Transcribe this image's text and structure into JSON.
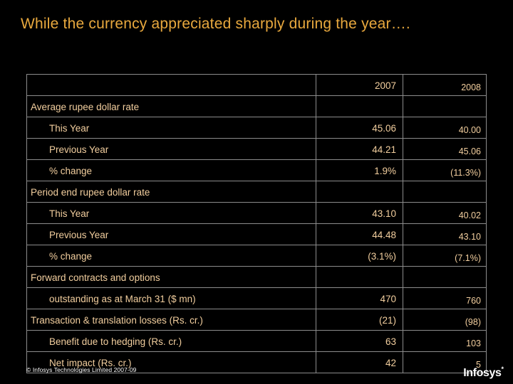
{
  "slide": {
    "title": "While the currency appreciated sharply during the year….",
    "background_color": "#000000",
    "title_color": "#E9A93E"
  },
  "table": {
    "text_color": "#F2CE9E",
    "border_color": "#8C8C8C",
    "columns": [
      "",
      "2007",
      "2008"
    ],
    "rows": [
      {
        "label": "Average rupee dollar rate",
        "indent": false,
        "v2007": "",
        "v2008": ""
      },
      {
        "label": "This Year",
        "indent": true,
        "v2007": "45.06",
        "v2008": "40.00"
      },
      {
        "label": "Previous Year",
        "indent": true,
        "v2007": "44.21",
        "v2008": "45.06"
      },
      {
        "label": "% change",
        "indent": true,
        "v2007": "1.9%",
        "v2008": "(11.3%)"
      },
      {
        "label": "Period end rupee dollar rate",
        "indent": false,
        "v2007": "",
        "v2008": ""
      },
      {
        "label": "This Year",
        "indent": true,
        "v2007": "43.10",
        "v2008": "40.02"
      },
      {
        "label": "Previous Year",
        "indent": true,
        "v2007": "44.48",
        "v2008": "43.10"
      },
      {
        "label": "% change",
        "indent": true,
        "v2007": "(3.1%)",
        "v2008": "(7.1%)"
      },
      {
        "label": "Forward contracts and options",
        "indent": false,
        "v2007": "",
        "v2008": ""
      },
      {
        "label": "outstanding as at March 31 ($ mn)",
        "indent": true,
        "v2007": "470",
        "v2008": "760"
      },
      {
        "label": "Transaction & translation losses (Rs. cr.)",
        "indent": false,
        "v2007": "(21)",
        "v2008": "(98)"
      },
      {
        "label": "Benefit due to hedging (Rs. cr.)",
        "indent": true,
        "v2007": "63",
        "v2008": "103"
      },
      {
        "label": "Net impact (Rs. cr.)",
        "indent": true,
        "v2007": "42",
        "v2008": "5"
      }
    ]
  },
  "footer": {
    "copyright": "© Infosys Technologies Limited 2007-09",
    "logo_text": "Infosys",
    "logo_mark": "*"
  }
}
